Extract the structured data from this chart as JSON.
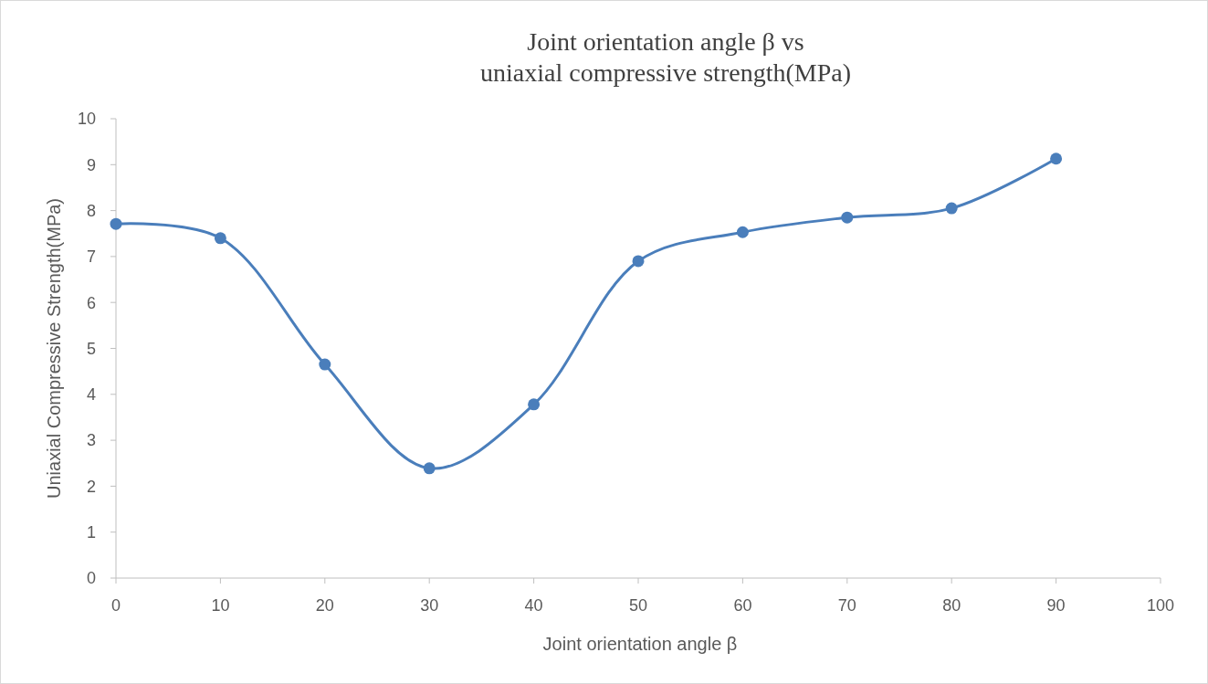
{
  "chart_data": {
    "type": "line",
    "title": "Joint orientation angle β vs\nuniaxial compressive strength(MPa)",
    "xlabel": "Joint orientation angle β",
    "ylabel": "Uniaxial Compressive Strength(MPa)",
    "x": [
      0,
      10,
      20,
      30,
      40,
      50,
      60,
      70,
      80,
      90
    ],
    "series": [
      {
        "color": "#4a7ebb",
        "values": [
          7.71,
          7.4,
          4.65,
          2.39,
          3.78,
          6.9,
          7.53,
          7.85,
          8.05,
          9.13
        ]
      }
    ],
    "xlim": [
      0,
      100
    ],
    "xticks": [
      0,
      10,
      20,
      30,
      40,
      50,
      60,
      70,
      80,
      90,
      100
    ],
    "ylim": [
      0,
      10
    ],
    "yticks": [
      0,
      1,
      2,
      3,
      4,
      5,
      6,
      7,
      8,
      9,
      10
    ],
    "grid": false,
    "marker": "circle",
    "line_style": "solid"
  }
}
